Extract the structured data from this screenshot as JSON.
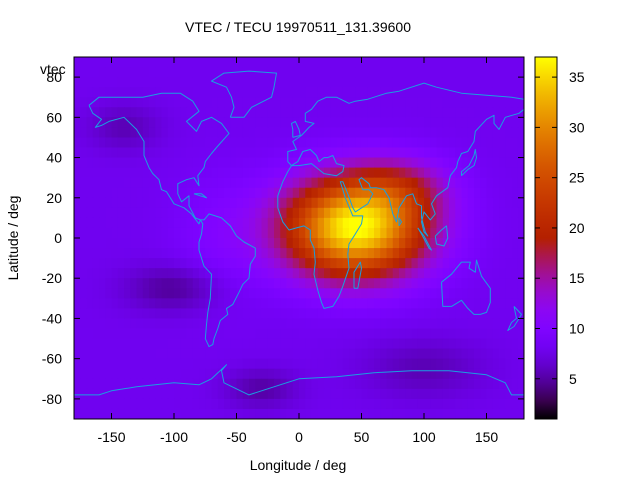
{
  "chart_data": {
    "type": "heatmap",
    "title": "VTEC / TECU 19970511_131.39600",
    "xlabel": "Longitude / deg",
    "ylabel": "Latitude / deg",
    "key_label": "vtec",
    "xlim": [
      -180,
      180
    ],
    "ylim": [
      -90,
      90
    ],
    "xticks": [
      -150,
      -100,
      -50,
      0,
      50,
      100,
      150
    ],
    "yticks": [
      -80,
      -60,
      -40,
      -20,
      0,
      20,
      40,
      60,
      80
    ],
    "colorbar": {
      "range": [
        1,
        37
      ],
      "ticks": [
        5,
        10,
        15,
        20,
        25,
        30,
        35
      ],
      "palette": "gnuplot-pm3d-black-purple-red-yellow"
    },
    "grid": false,
    "peak": {
      "lon": 45,
      "lat": 5,
      "value": 37
    },
    "background_value": 8,
    "coastline_color": "#1a9fe0"
  }
}
